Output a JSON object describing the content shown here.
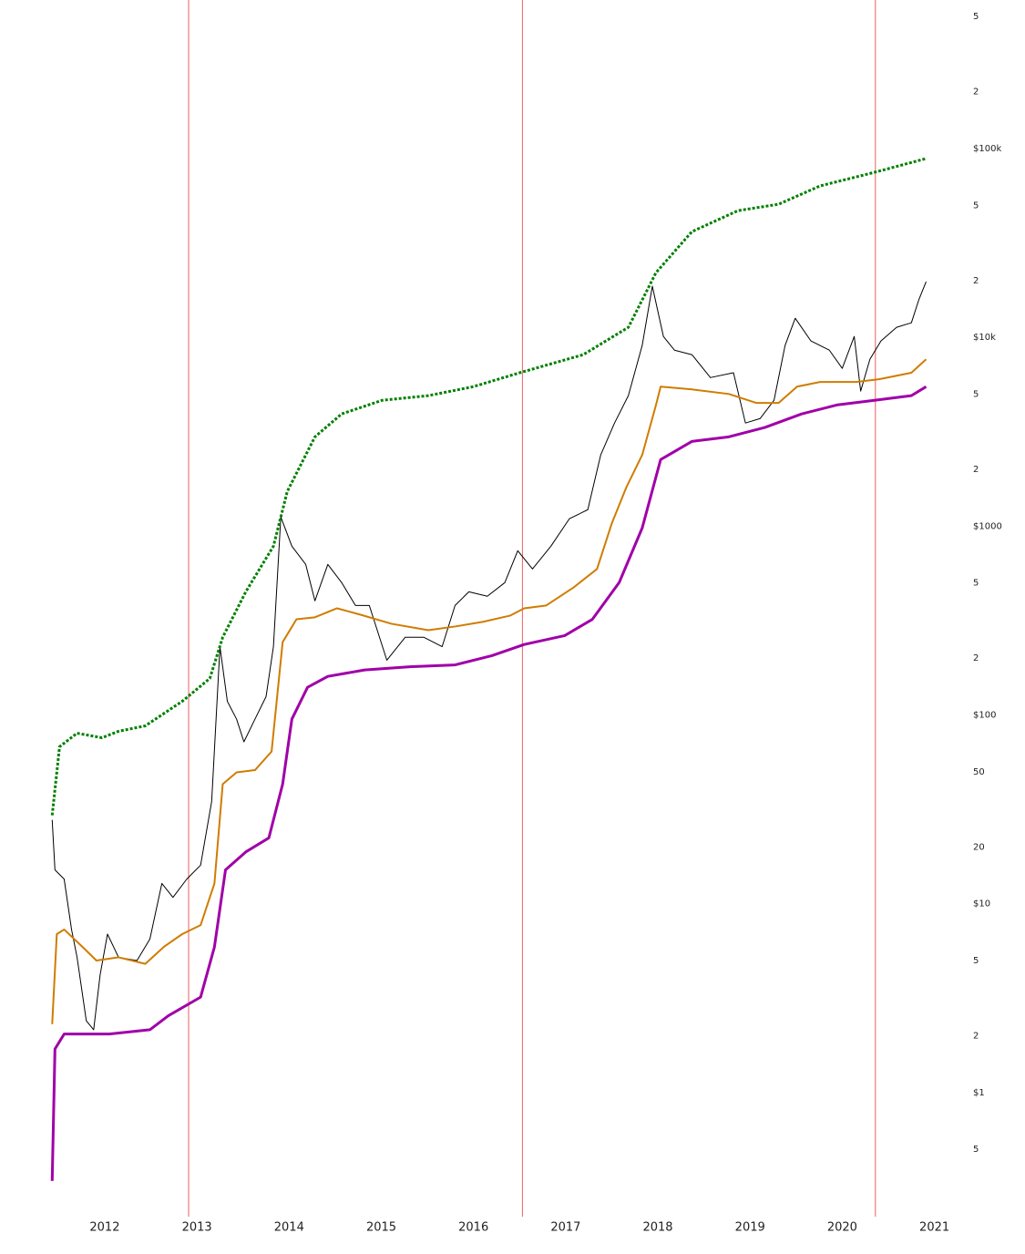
{
  "chart_data": {
    "type": "line",
    "log_y": true,
    "xlim": [
      2010.864,
      2021.34
    ],
    "xticks": [
      2012,
      2013,
      2014,
      2015,
      2016,
      2017,
      2018,
      2019,
      2020,
      2021
    ],
    "ylim": [
      0.22,
      612000
    ],
    "yticks": [
      {
        "value": 500000,
        "label": "5"
      },
      {
        "value": 200000,
        "label": "2"
      },
      {
        "value": 100000,
        "label": "$100k"
      },
      {
        "value": 50000,
        "label": "5"
      },
      {
        "value": 20000,
        "label": "2"
      },
      {
        "value": 10000,
        "label": "$10k"
      },
      {
        "value": 5000,
        "label": "5"
      },
      {
        "value": 2000,
        "label": "2"
      },
      {
        "value": 1000,
        "label": "$1000"
      },
      {
        "value": 500,
        "label": "5"
      },
      {
        "value": 200,
        "label": "2"
      },
      {
        "value": 100,
        "label": "$100"
      },
      50,
      20,
      {
        "value": 10,
        "label": "$10"
      },
      5,
      2,
      {
        "value": 1,
        "label": "$1"
      },
      {
        "value": 0.5,
        "label": "5"
      }
    ],
    "grid": false,
    "vlines": [
      2012.91,
      2016.53,
      2020.36
    ],
    "vline_color": "#e53935",
    "series": [
      {
        "color": "#000000",
        "width": 1,
        "dashed": false,
        "x": [
          2011.43,
          2011.46,
          2011.56,
          2011.64,
          2011.7,
          2011.8,
          2011.88,
          2011.95,
          2012.03,
          2012.15,
          2012.35,
          2012.49,
          2012.62,
          2012.74,
          2012.89,
          2013.04,
          2013.16,
          2013.25,
          2013.33,
          2013.43,
          2013.51,
          2013.63,
          2013.75,
          2013.83,
          2013.91,
          2014.03,
          2014.18,
          2014.28,
          2014.42,
          2014.57,
          2014.72,
          2014.87,
          2015.06,
          2015.26,
          2015.46,
          2015.66,
          2015.8,
          2015.95,
          2016.15,
          2016.34,
          2016.48,
          2016.64,
          2016.84,
          2017.04,
          2017.24,
          2017.38,
          2017.53,
          2017.68,
          2017.83,
          2017.94,
          2018.06,
          2018.18,
          2018.37,
          2018.57,
          2018.82,
          2018.95,
          2019.11,
          2019.26,
          2019.38,
          2019.49,
          2019.66,
          2019.86,
          2020.0,
          2020.13,
          2020.2,
          2020.3,
          2020.42,
          2020.59,
          2020.75,
          2020.83,
          2020.91
        ],
        "values": [
          27.8,
          15.1,
          13.5,
          7.3,
          5.2,
          2.4,
          2.15,
          4.2,
          6.9,
          5.2,
          5.0,
          6.5,
          12.8,
          10.8,
          13.5,
          16,
          34.8,
          230,
          118,
          95,
          72,
          95,
          125,
          230,
          1117,
          783,
          627,
          402,
          627,
          502,
          380,
          380,
          195,
          258,
          258,
          230,
          380,
          449,
          425,
          502,
          741,
          593,
          783,
          1094,
          1222,
          2382,
          3516,
          4910,
          9056,
          18660,
          10110,
          8550,
          8090,
          6120,
          6490,
          3516,
          3715,
          4640,
          9056,
          12620,
          9570,
          8550,
          6850,
          10110,
          5190,
          7650,
          9570,
          11300,
          11940,
          15780,
          19720
        ]
      },
      {
        "color": "#d07c00",
        "width": 2,
        "dashed": false,
        "x": [
          2011.43,
          2011.48,
          2011.56,
          2011.76,
          2011.91,
          2012.15,
          2012.44,
          2012.64,
          2012.84,
          2013.04,
          2013.19,
          2013.28,
          2013.43,
          2013.63,
          2013.81,
          2013.93,
          2014.08,
          2014.28,
          2014.52,
          2014.77,
          2015.11,
          2015.51,
          2015.8,
          2016.1,
          2016.4,
          2016.55,
          2016.79,
          2017.09,
          2017.34,
          2017.5,
          2017.66,
          2017.83,
          2017.98,
          2018.03,
          2018.37,
          2018.77,
          2019.07,
          2019.31,
          2019.51,
          2019.76,
          2020.15,
          2020.4,
          2020.75,
          2020.91
        ],
        "values": [
          2.3,
          6.9,
          7.3,
          5.9,
          5.0,
          5.2,
          4.8,
          5.9,
          6.9,
          7.7,
          12.8,
          43,
          49.6,
          51,
          64,
          243,
          321,
          329,
          367,
          340,
          304,
          281,
          294,
          311,
          336,
          367,
          380,
          475,
          593,
          1033,
          1613,
          2382,
          4390,
          5480,
          5300,
          5010,
          4490,
          4490,
          5480,
          5800,
          5800,
          6000,
          6490,
          7650
        ]
      },
      {
        "color": "#a000a8",
        "width": 3,
        "dashed": false,
        "x": [
          2011.43,
          2011.46,
          2011.56,
          2012.05,
          2012.49,
          2012.69,
          2013.04,
          2013.19,
          2013.31,
          2013.53,
          2013.78,
          2013.93,
          2014.03,
          2014.2,
          2014.42,
          2014.82,
          2015.31,
          2015.8,
          2016.2,
          2016.55,
          2016.99,
          2017.29,
          2017.58,
          2017.83,
          2018.03,
          2018.37,
          2018.77,
          2019.16,
          2019.56,
          2019.95,
          2020.35,
          2020.75,
          2020.91
        ],
        "values": [
          0.34,
          1.7,
          2.04,
          2.04,
          2.15,
          2.55,
          3.2,
          5.9,
          15.1,
          18.8,
          22.3,
          43,
          95,
          140,
          160,
          173,
          180,
          184,
          206,
          236,
          263,
          321,
          502,
          977,
          2250,
          2810,
          2970,
          3330,
          3930,
          4390,
          4640,
          4910,
          5480
        ]
      },
      {
        "color": "#008000",
        "width": 3,
        "dashed": true,
        "x": [
          2011.43,
          2011.51,
          2011.7,
          2011.97,
          2012.15,
          2012.44,
          2012.84,
          2013.14,
          2013.28,
          2013.53,
          2013.83,
          2013.98,
          2014.28,
          2014.57,
          2015.01,
          2015.51,
          2016.0,
          2016.5,
          2017.19,
          2017.68,
          2017.98,
          2018.37,
          2018.87,
          2019.31,
          2019.76,
          2020.35,
          2020.91
        ],
        "values": [
          29.4,
          67.8,
          80,
          75.7,
          81.9,
          87.5,
          118,
          156,
          258,
          449,
          783,
          1526,
          2970,
          3930,
          4640,
          4910,
          5480,
          6490,
          8090,
          11300,
          22030,
          36300,
          46900,
          50700,
          63400,
          74800,
          88500
        ]
      }
    ]
  }
}
